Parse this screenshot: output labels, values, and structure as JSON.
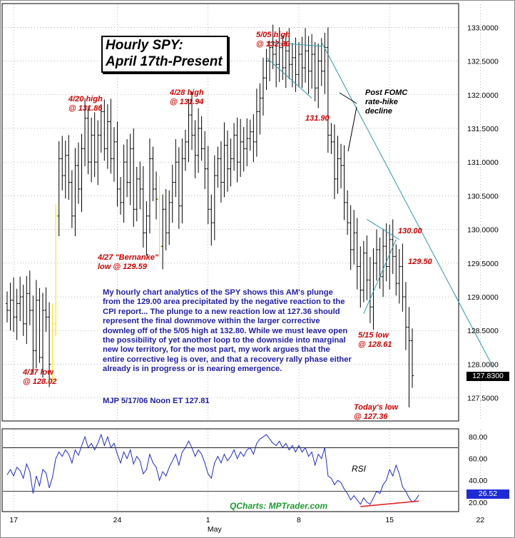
{
  "chart_data": [
    {
      "type": "ohlc",
      "title": "Hourly SPY: April 17th-Present",
      "title_lines": [
        "Hourly SPY:",
        "April 17th-Present"
      ],
      "ylim": [
        127.2,
        133.3
      ],
      "yticks": [
        "133.0000",
        "132.5000",
        "132.0000",
        "131.5000",
        "131.0000",
        "130.5000",
        "130.0000",
        "129.5000",
        "129.0000",
        "128.5000",
        "128.0000",
        "127.5000"
      ],
      "ytick_values": [
        133.0,
        132.5,
        132.0,
        131.5,
        131.0,
        130.5,
        130.0,
        129.5,
        129.0,
        128.5,
        128.0,
        127.5
      ],
      "last_price_label": "127.8300",
      "last_price": 127.83,
      "x_ticks": [
        {
          "label": "17",
          "bar": 2
        },
        {
          "label": "24",
          "bar": 34
        },
        {
          "label": "1",
          "bar": 62
        },
        {
          "label": "8",
          "bar": 90
        },
        {
          "label": "15",
          "bar": 118
        },
        {
          "label": "22",
          "bar": 146
        }
      ],
      "x_month_label": {
        "label": "May",
        "bar": 64
      },
      "closes": [
        128.8,
        128.95,
        128.7,
        128.9,
        129.0,
        128.6,
        129.05,
        128.8,
        128.2,
        128.95,
        128.1,
        128.8,
        128.7,
        128.0,
        128.6,
        130.2,
        131.05,
        130.8,
        131.1,
        130.7,
        130.2,
        130.95,
        130.6,
        131.2,
        131.65,
        131.0,
        131.4,
        131.0,
        131.4,
        131.75,
        131.2,
        131.6,
        131.05,
        131.3,
        130.6,
        130.4,
        131.0,
        130.7,
        131.2,
        130.3,
        130.75,
        130.6,
        129.95,
        130.2,
        131.05,
        130.6,
        130.45,
        129.75,
        130.3,
        129.95,
        130.4,
        130.7,
        131.0,
        130.35,
        131.05,
        131.3,
        131.7,
        131.4,
        131.1,
        131.5,
        131.2,
        130.9,
        130.3,
        130.1,
        130.8,
        131.05,
        130.7,
        131.25,
        130.9,
        131.05,
        131.4,
        131.0,
        131.3,
        131.2,
        131.35,
        131.45,
        131.3,
        131.75,
        131.95,
        132.25,
        132.5,
        132.7,
        132.6,
        132.45,
        132.7,
        132.4,
        132.65,
        132.45,
        132.55,
        132.3,
        132.6,
        132.4,
        132.65,
        132.35,
        132.6,
        132.1,
        132.5,
        132.35,
        132.7,
        131.4,
        131.3,
        130.75,
        131.05,
        130.95,
        130.4,
        130.1,
        129.7,
        129.95,
        129.45,
        129.1,
        129.65,
        129.25,
        128.85,
        129.5,
        129.7,
        129.3,
        129.75,
        129.45,
        129.85,
        129.6,
        129.2,
        129.45,
        129.0,
        128.55,
        128.35,
        127.83
      ],
      "annotations": [
        {
          "text": "4/20 high",
          "text2": "@ 131.86",
          "price": 131.86
        },
        {
          "text": "4/28 high",
          "text2": "@ 131.94",
          "price": 131.94
        },
        {
          "text": "5/05 high",
          "text2": "@ 132.80",
          "price": 132.8
        },
        {
          "text": "131.90",
          "price": 131.9
        },
        {
          "text": "4/27 \"Bernanke\"",
          "text2": "low @ 129.59",
          "price": 129.59
        },
        {
          "text": "4/17 low",
          "text2": "@ 128.02",
          "price": 128.02
        },
        {
          "text": "5/15 low",
          "text2": "@ 128.61",
          "price": 128.61
        },
        {
          "text": "Today's low",
          "text2": "@ 127.36",
          "price": 127.36
        },
        {
          "text": "130.00",
          "price": 130.0
        },
        {
          "text": "129.50",
          "price": 129.5
        }
      ],
      "post_fomc_label": [
        "Post FOMC",
        "rate-hike",
        "decline"
      ]
    },
    {
      "type": "line",
      "name": "RSI",
      "ylim": [
        12,
        86
      ],
      "yticks": [
        "80.00",
        "60.00",
        "40.00",
        "20.00"
      ],
      "ytick_values": [
        80,
        60,
        40,
        20
      ],
      "guide_lines": [
        70,
        30
      ],
      "last_value_label": "26.52",
      "last_value": 26.52,
      "values": [
        45,
        50,
        44,
        52,
        49,
        42,
        55,
        48,
        28,
        44,
        35,
        50,
        47,
        33,
        43,
        60,
        66,
        62,
        68,
        64,
        56,
        68,
        63,
        72,
        80,
        70,
        74,
        68,
        74,
        82,
        72,
        80,
        70,
        74,
        64,
        56,
        66,
        60,
        68,
        55,
        62,
        58,
        46,
        50,
        64,
        56,
        52,
        40,
        48,
        44,
        52,
        58,
        64,
        54,
        66,
        70,
        76,
        70,
        62,
        68,
        64,
        56,
        46,
        42,
        56,
        62,
        56,
        64,
        58,
        62,
        68,
        60,
        66,
        62,
        68,
        70,
        64,
        74,
        78,
        80,
        82,
        78,
        74,
        72,
        76,
        70,
        74,
        68,
        72,
        66,
        72,
        66,
        70,
        62,
        66,
        54,
        64,
        60,
        70,
        44,
        42,
        36,
        40,
        38,
        32,
        28,
        22,
        26,
        22,
        18,
        24,
        20,
        18,
        24,
        30,
        28,
        36,
        40,
        50,
        44,
        54,
        46,
        34,
        30,
        24,
        20,
        22,
        26.52
      ]
    }
  ],
  "commentary": {
    "paragraph": "My hourly chart analytics of the SPY shows this AM's plunge from the 129.00 area precipitated by the negative reaction to the CPI report... The plunge to a new reaction low at 127.36 should represent the final downmove within the larger corrective downleg off of the 5/05 high at 132.80. While we must leave open the possibility of yet another loop to the downside into marginal new low territory, for the most part, my work argues that the entire corrective leg is over, and that a recovery rally phase either already is in progress or is nearing emergence.",
    "signoff": "MJP  5/17/06 Noon  ET  127.81"
  },
  "rsi_label": "RSI",
  "watermark": "QCharts: MPTrader.com",
  "colors": {
    "bars": "#000000",
    "highlight_bars": "#ffe000",
    "annotation": "#d10000",
    "commentary": "#1f1faa",
    "trendline": "#2b9aa8",
    "rsi_trend": "#e02020",
    "grid": "#8a8a8a"
  }
}
